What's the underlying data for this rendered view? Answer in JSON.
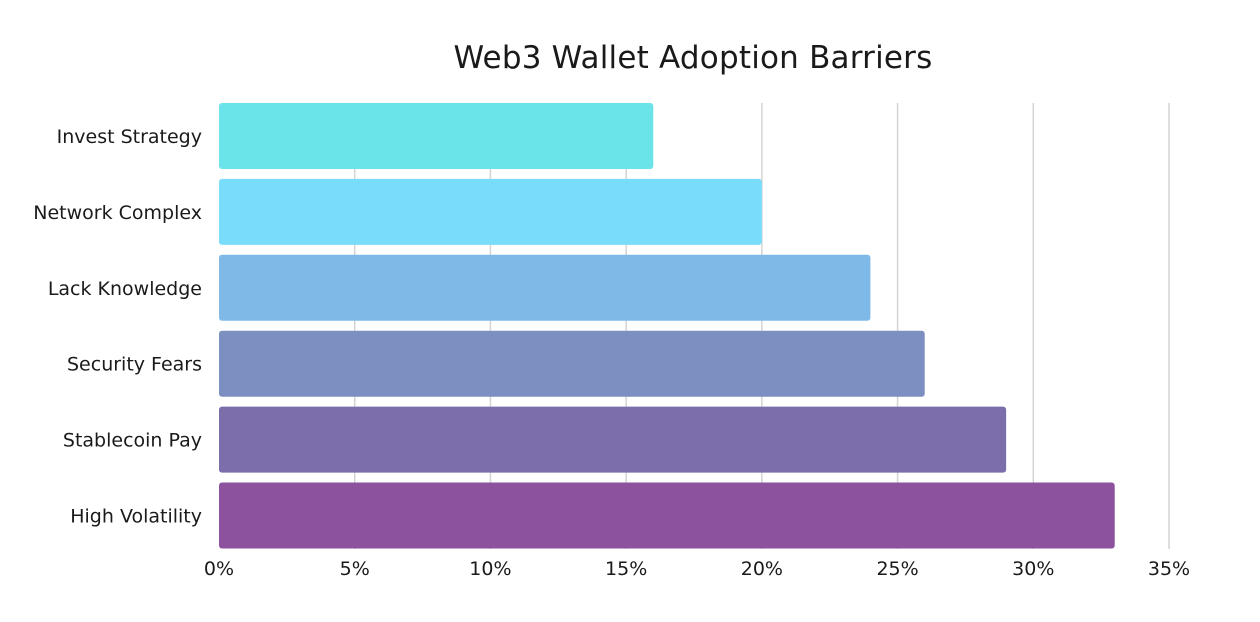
{
  "chart_data": {
    "type": "bar",
    "orientation": "horizontal",
    "title": "Web3 Wallet Adoption Barriers",
    "xlabel": "",
    "ylabel": "",
    "categories": [
      "Invest Strategy",
      "Network Complex",
      "Lack Knowledge",
      "Security Fears",
      "Stablecoin Pay",
      "High Volatility"
    ],
    "values": [
      16,
      20,
      24,
      26,
      29,
      33
    ],
    "value_unit": "%",
    "xlim": [
      0,
      35
    ],
    "x_ticks": [
      "0%",
      "5%",
      "10%",
      "15%",
      "20%",
      "25%",
      "30%",
      "35%"
    ],
    "x_tick_values": [
      0,
      5,
      10,
      15,
      20,
      25,
      30,
      35
    ],
    "grid": "vertical",
    "legend": "none",
    "bar_colors": [
      "#6ae4e8",
      "#7adcfb",
      "#7fb9e8",
      "#7b8fc0",
      "#7b6eab",
      "#8c529d"
    ],
    "grid_color": "#d4d4d4"
  }
}
